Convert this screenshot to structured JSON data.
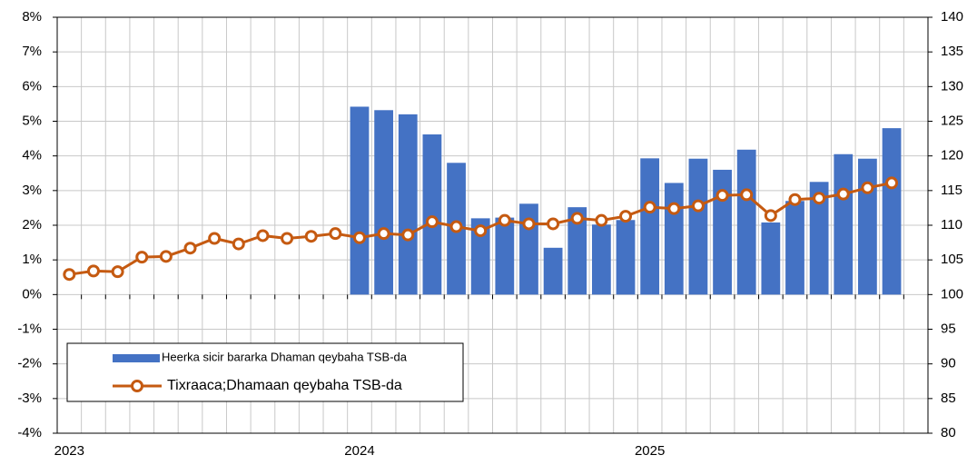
{
  "chart_data": {
    "type": "bar",
    "categories": [
      "2023",
      null,
      null,
      null,
      null,
      null,
      null,
      null,
      null,
      null,
      null,
      null,
      "2024",
      null,
      null,
      null,
      null,
      null,
      null,
      null,
      null,
      null,
      null,
      null,
      "2025",
      null,
      null,
      null,
      null,
      null,
      null,
      null,
      null,
      null,
      null,
      null
    ],
    "series": [
      {
        "name": "Heerka sicir bararka Dhaman qeybaha TSB-da",
        "type": "bar",
        "color": "#4472c4",
        "values": [
          null,
          null,
          null,
          null,
          null,
          null,
          null,
          null,
          null,
          null,
          null,
          null,
          5.42,
          5.32,
          5.2,
          4.62,
          3.8,
          2.2,
          2.22,
          2.62,
          1.35,
          2.52,
          2.02,
          2.15,
          3.93,
          3.22,
          3.92,
          3.6,
          4.18,
          2.08,
          2.7,
          3.25,
          4.05,
          3.92,
          4.8,
          null
        ]
      },
      {
        "name": "Tixraaca;Dhamaan qeybaha TSB-da",
        "type": "line",
        "axis": "y2",
        "color": "#c55a11",
        "values": [
          102.9,
          103.4,
          103.3,
          105.4,
          105.5,
          106.7,
          108.1,
          107.3,
          108.5,
          108.1,
          108.4,
          108.8,
          108.2,
          108.8,
          108.6,
          110.5,
          109.8,
          109.2,
          110.7,
          110.2,
          110.2,
          111.0,
          110.7,
          111.3,
          112.6,
          112.4,
          112.8,
          114.3,
          114.4,
          111.4,
          113.7,
          113.9,
          114.5,
          115.4,
          116.1,
          null
        ]
      }
    ],
    "ylim": [
      -4,
      8
    ],
    "yticks": [
      {
        "value": -4,
        "label": "-4%"
      },
      {
        "value": -3,
        "label": "-3%"
      },
      {
        "value": -2,
        "label": "-2%"
      },
      {
        "value": -1,
        "label": "-1%"
      },
      {
        "value": 0,
        "label": "0%"
      },
      {
        "value": 1,
        "label": "1%"
      },
      {
        "value": 2,
        "label": "2%"
      },
      {
        "value": 3,
        "label": "3%"
      },
      {
        "value": 4,
        "label": "4%"
      },
      {
        "value": 5,
        "label": "5%"
      },
      {
        "value": 6,
        "label": "6%"
      },
      {
        "value": 7,
        "label": "7%"
      },
      {
        "value": 8,
        "label": "8%"
      }
    ],
    "y2lim": [
      80,
      140
    ],
    "y2ticks": [
      80,
      85,
      90,
      95,
      100,
      105,
      110,
      115,
      120,
      125,
      130,
      135,
      140
    ],
    "grid": true,
    "legend": "lower left"
  }
}
